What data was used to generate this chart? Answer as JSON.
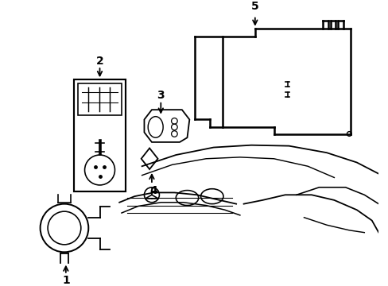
{
  "bg_color": "#ffffff",
  "line_color": "#000000",
  "lw": 1.3,
  "figsize": [
    4.89,
    3.6
  ],
  "dpi": 100,
  "label_fontsize": 10,
  "label_fontweight": "bold"
}
